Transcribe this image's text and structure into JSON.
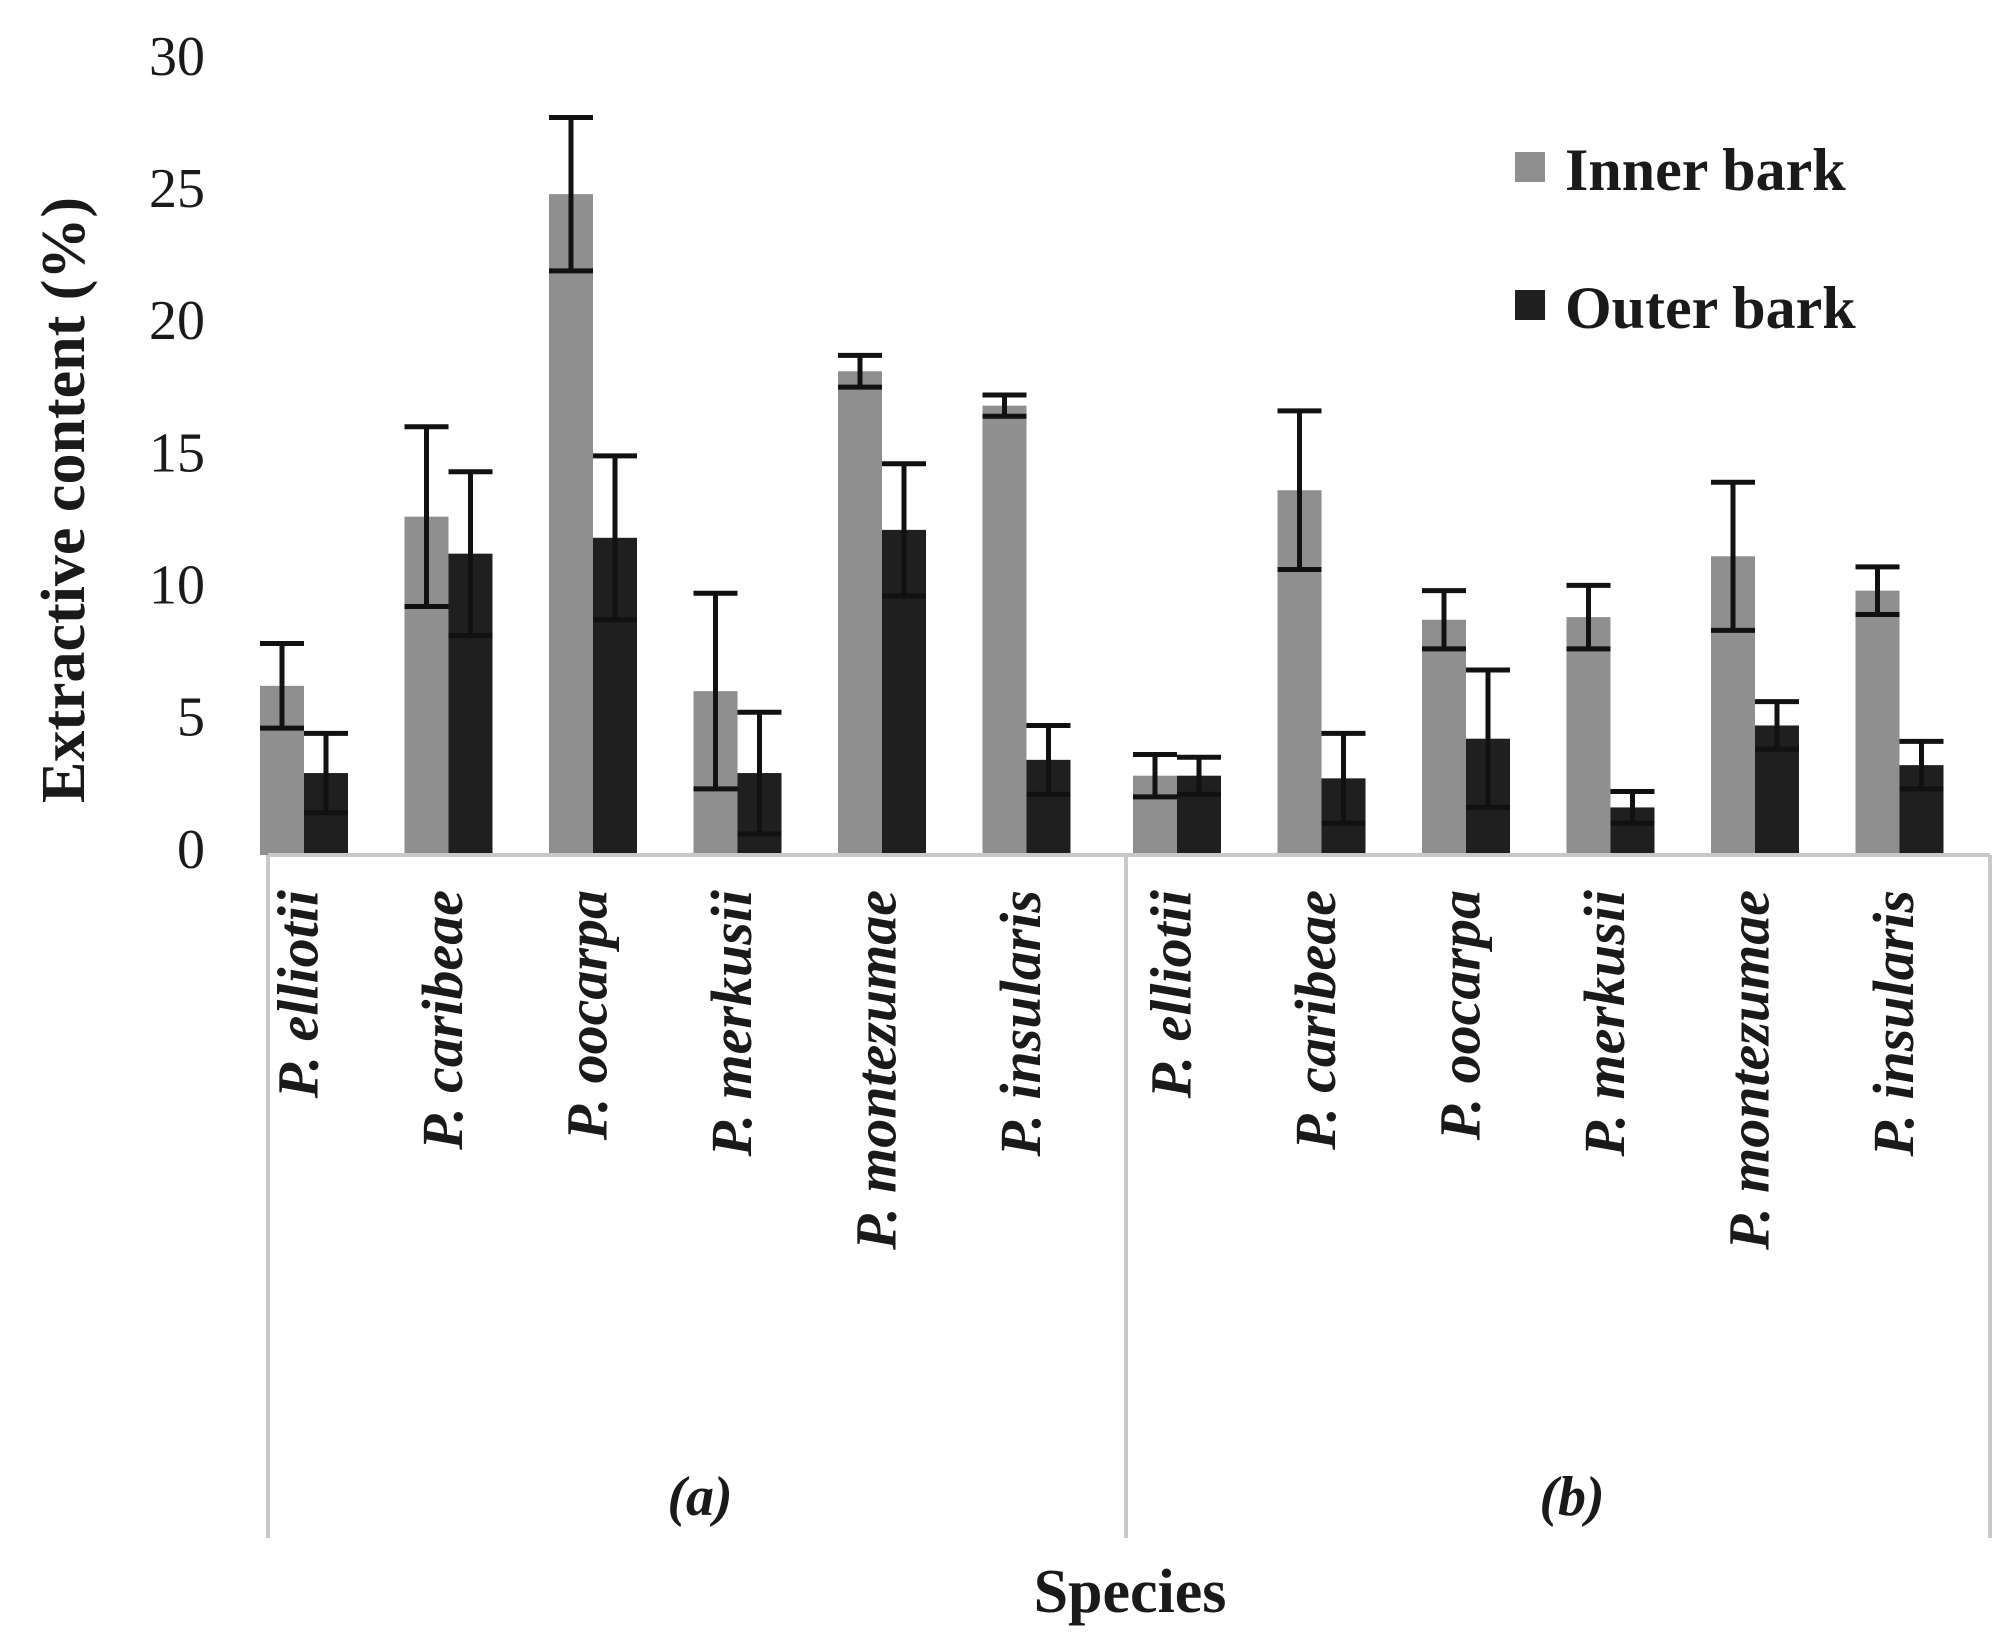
{
  "chart_data": {
    "type": "bar",
    "ylabel": "Extractive content (%)",
    "xlabel": "Species",
    "ylim": [
      0,
      30
    ],
    "yticks": [
      "0",
      "5",
      "10",
      "15",
      "20",
      "25",
      "30"
    ],
    "grid": false,
    "legend_position": "top-right",
    "series": [
      {
        "name": "Inner bark",
        "color": "#8f8f8f"
      },
      {
        "name": "Outer bark",
        "color": "#1f1f1f"
      }
    ],
    "groups": [
      {
        "label": "(a)",
        "categories": [
          "P. elliotii",
          "P. caribeae",
          "P. oocarpa",
          "P. merkusii",
          "P. montezumae",
          "P. insularis"
        ],
        "inner": [
          6.4,
          12.8,
          25.0,
          6.2,
          18.3,
          17.0
        ],
        "inner_err": [
          1.6,
          3.4,
          2.9,
          3.7,
          0.6,
          0.4
        ],
        "outer": [
          3.1,
          11.4,
          12.0,
          3.1,
          12.3,
          3.6
        ],
        "outer_err": [
          1.5,
          3.1,
          3.1,
          2.3,
          2.5,
          1.3
        ]
      },
      {
        "label": "(b)",
        "categories": [
          "P. elliotii",
          "P. caribeae",
          "P. oocarpa",
          "P. merkusii",
          "P. montezumae",
          "P. insularis"
        ],
        "inner": [
          3.0,
          13.8,
          8.9,
          9.0,
          11.3,
          10.0
        ],
        "inner_err": [
          0.8,
          3.0,
          1.1,
          1.2,
          2.8,
          0.9
        ],
        "outer": [
          3.0,
          2.9,
          4.4,
          1.8,
          4.9,
          3.4
        ],
        "outer_err": [
          0.7,
          1.7,
          2.6,
          0.6,
          0.9,
          0.9
        ]
      }
    ]
  }
}
